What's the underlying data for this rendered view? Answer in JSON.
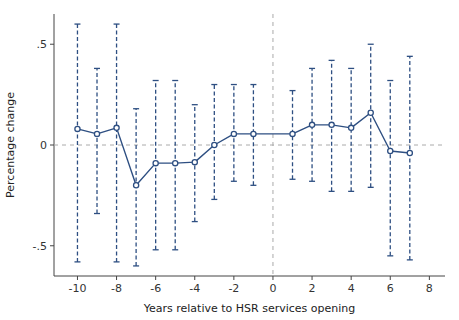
{
  "chart_data": {
    "type": "line",
    "x": [
      -10,
      -9,
      -8,
      -7,
      -6,
      -5,
      -4,
      -3,
      -2,
      -1,
      1,
      2,
      3,
      4,
      5,
      6,
      7
    ],
    "values": [
      0.08,
      0.055,
      0.085,
      -0.2,
      -0.09,
      -0.09,
      -0.085,
      0.0,
      0.055,
      0.055,
      0.055,
      0.1,
      0.1,
      0.085,
      0.16,
      -0.03,
      -0.04
    ],
    "upper": [
      0.6,
      0.38,
      0.6,
      0.18,
      0.32,
      0.32,
      0.2,
      0.3,
      0.3,
      0.3,
      0.27,
      0.38,
      0.42,
      0.38,
      0.5,
      0.32,
      0.44
    ],
    "lower": [
      -0.58,
      -0.34,
      -0.58,
      -0.6,
      -0.52,
      -0.52,
      -0.38,
      -0.27,
      -0.18,
      -0.2,
      -0.17,
      -0.18,
      -0.23,
      -0.23,
      -0.21,
      -0.55,
      -0.57
    ],
    "color": "#2e4f82",
    "marker": "circle",
    "xlabel": "Years relative to HSR services opening",
    "ylabel": "Percentage change",
    "xlim": [
      -11.2,
      8.8
    ],
    "ylim": [
      -0.65,
      0.65
    ],
    "xticks": [
      -10,
      -8,
      -6,
      -4,
      -2,
      0,
      2,
      4,
      6,
      8
    ],
    "yticks": [
      {
        "value": -0.5,
        "label": "-.5"
      },
      0,
      {
        "value": 0.5,
        "label": ".5"
      }
    ],
    "hline_y": 0.0,
    "vline_x": 0.0,
    "grid": false
  }
}
